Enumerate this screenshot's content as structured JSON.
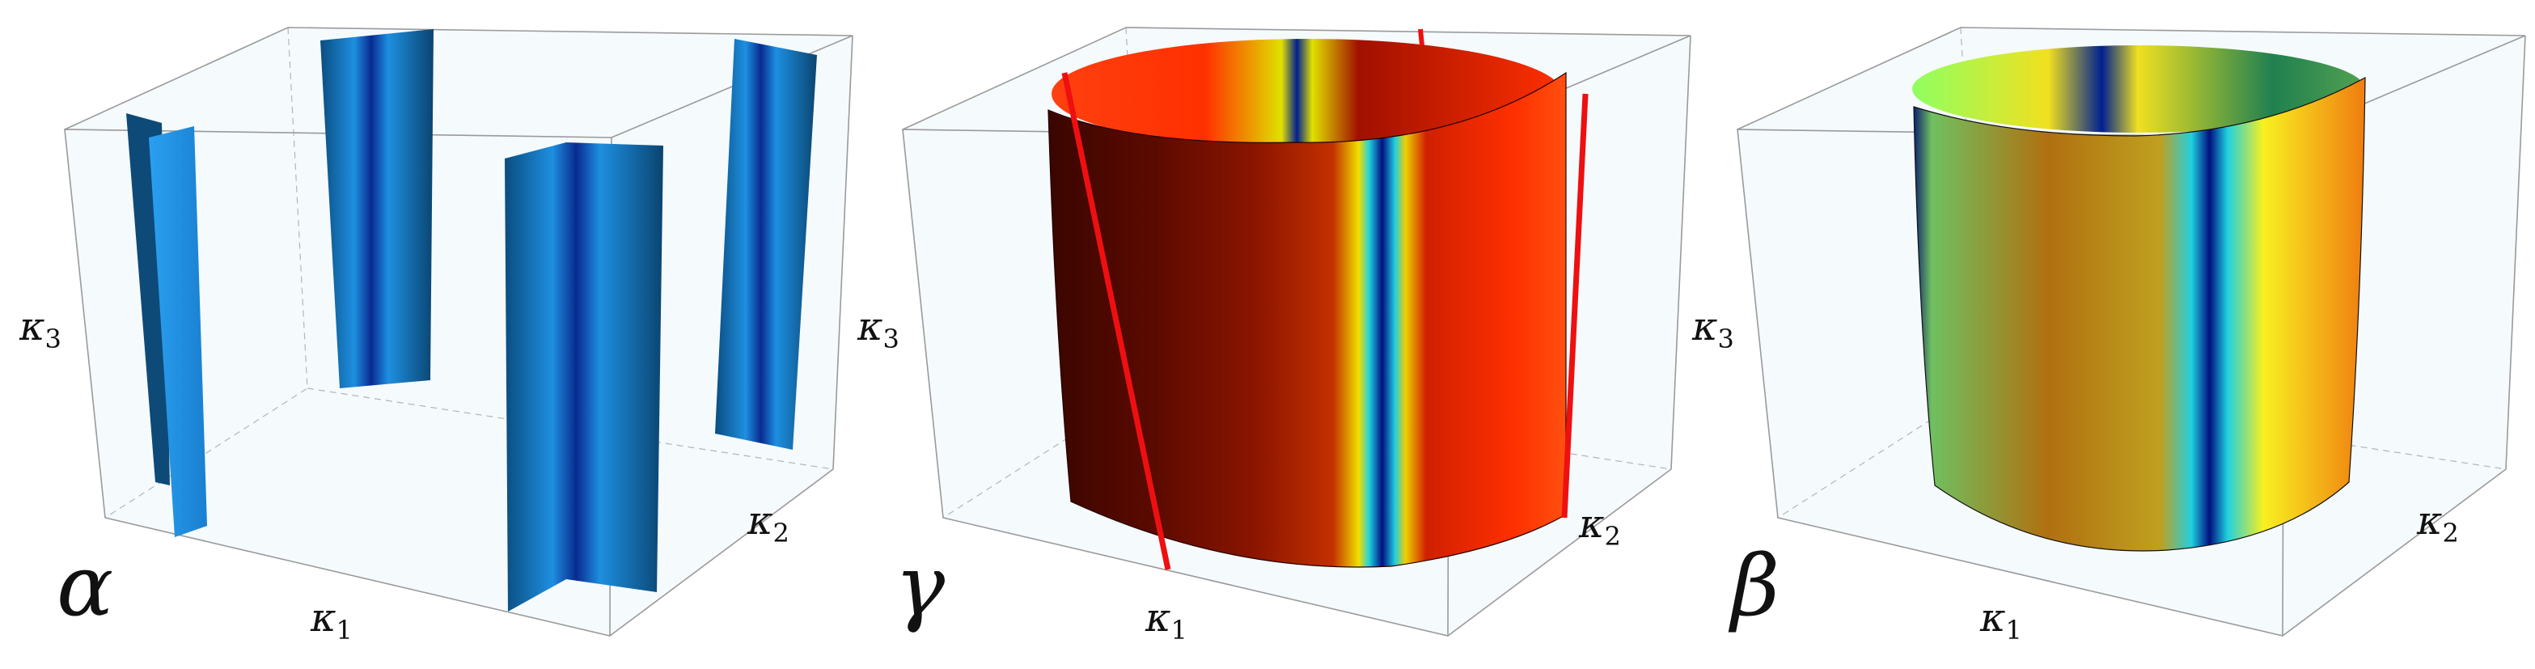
{
  "panels": [
    {
      "label": "α",
      "axes": {
        "x": {
          "symbol": "κ",
          "index": "1"
        },
        "y": {
          "symbol": "κ",
          "index": "2"
        },
        "z": {
          "symbol": "κ",
          "index": "3"
        }
      }
    },
    {
      "label": "γ",
      "axes": {
        "x": {
          "symbol": "κ",
          "index": "1"
        },
        "y": {
          "symbol": "κ",
          "index": "2"
        },
        "z": {
          "symbol": "κ",
          "index": "3"
        }
      }
    },
    {
      "label": "β",
      "axes": {
        "x": {
          "symbol": "κ",
          "index": "1"
        },
        "y": {
          "symbol": "κ",
          "index": "2"
        },
        "z": {
          "symbol": "κ",
          "index": "3"
        }
      }
    }
  ]
}
